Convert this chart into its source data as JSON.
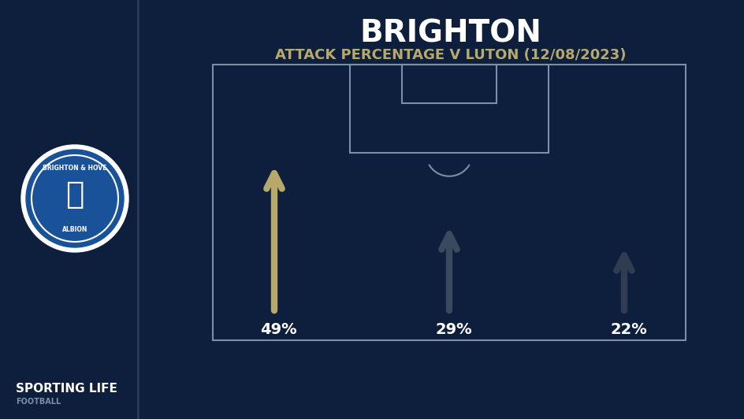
{
  "bg_color": "#0d1f3c",
  "title": "BRIGHTON",
  "subtitle": "ATTACK PERCENTAGE V LUTON (12/08/2023)",
  "title_color": "#ffffff",
  "subtitle_color": "#b8a96a",
  "percentages": [
    "49%",
    "29%",
    "22%"
  ],
  "pct_values": [
    0.49,
    0.29,
    0.22
  ],
  "arrow_colors": [
    "#b8a96a",
    "#3a4a5e",
    "#2e3d50"
  ],
  "field_line_color": "#7a8fa8",
  "text_color": "#ffffff",
  "sl_text": "SPORTING LIFE",
  "sl_subtext": "FOOTBALL"
}
